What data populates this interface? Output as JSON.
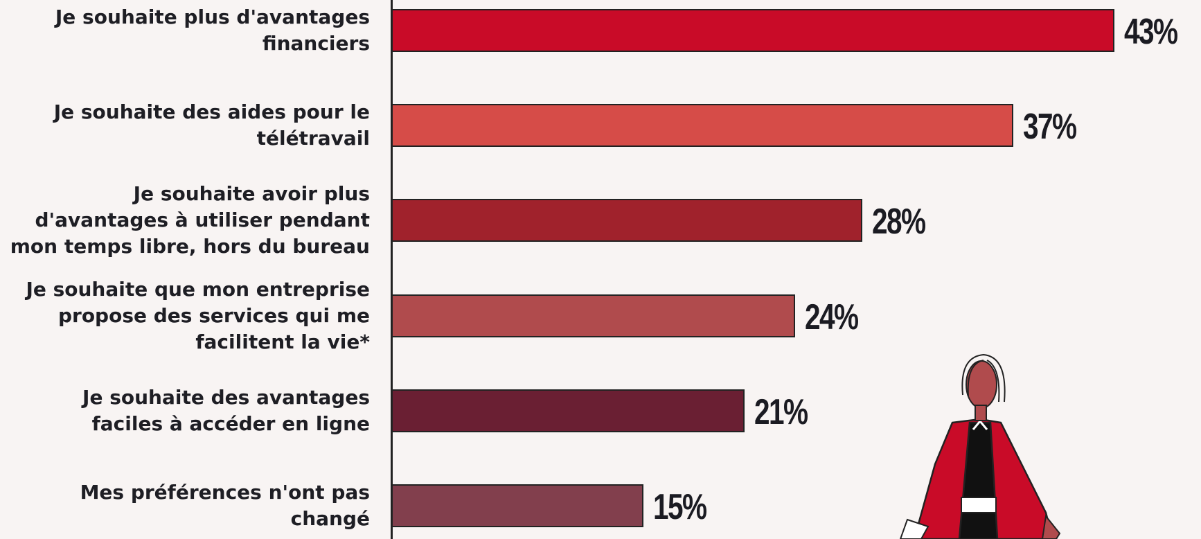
{
  "chart_data": {
    "type": "barh",
    "categories": [
      "Je souhaite plus d'avantages financiers",
      "Je souhaite des aides pour le télétravail",
      "Je souhaite avoir plus d'avantages à utiliser pendant mon temps libre, hors du bureau",
      "Je souhaite que mon entreprise propose des services qui me facilitent la vie*",
      "Je souhaite des avantages faciles à accéder en ligne",
      "Mes préférences n'ont pas changé"
    ],
    "values": [
      43,
      37,
      28,
      24,
      21,
      15
    ],
    "value_labels": [
      "43%",
      "37%",
      "28%",
      "24%",
      "21%",
      "15%"
    ],
    "colors": [
      "#c90b28",
      "#d64c48",
      "#a0222c",
      "#b04b4d",
      "#6a1f33",
      "#823f4d"
    ]
  }
}
